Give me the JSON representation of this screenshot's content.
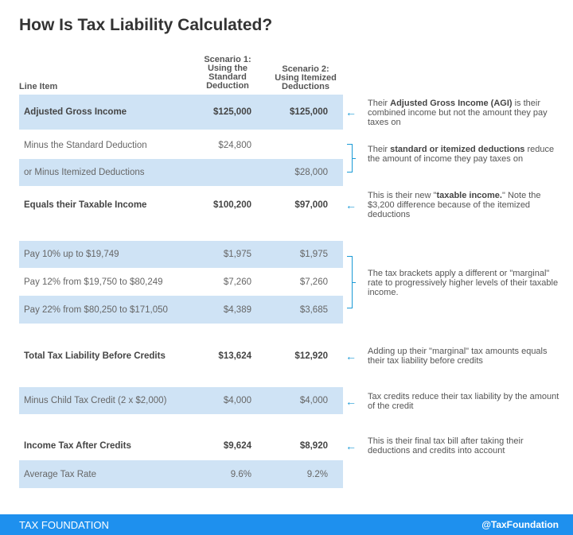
{
  "title": "How Is Tax Liability Calculated?",
  "headers": {
    "line_item": "Line Item",
    "scenario1": [
      "Scenario 1:",
      "Using the",
      "Standard",
      "Deduction"
    ],
    "scenario2": [
      "Scenario 2:",
      "Using Itemized",
      "Deductions"
    ]
  },
  "rows": [
    {
      "label": "Adjusted Gross Income",
      "s1": "$125,000",
      "s2": "$125,000"
    },
    {
      "label": "Minus the Standard Deduction",
      "s1": "$24,800",
      "s2": ""
    },
    {
      "label": "or Minus Itemized Deductions",
      "s1": "",
      "s2": "$28,000"
    },
    {
      "label": "Equals their Taxable Income",
      "s1": "$100,200",
      "s2": "$97,000"
    },
    {
      "label": "Pay 10% up to $19,749",
      "s1": "$1,975",
      "s2": "$1,975"
    },
    {
      "label": "Pay 12% from $19,750 to $80,249",
      "s1": "$7,260",
      "s2": "$7,260"
    },
    {
      "label": "Pay 22% from $80,250 to $171,050",
      "s1": "$4,389",
      "s2": "$3,685"
    },
    {
      "label": "Total Tax Liability Before Credits",
      "s1": "$13,624",
      "s2": "$12,920"
    },
    {
      "label": "Minus Child Tax Credit (2 x $2,000)",
      "s1": "$4,000",
      "s2": "$4,000"
    },
    {
      "label": "Income Tax After Credits",
      "s1": "$9,624",
      "s2": "$8,920"
    },
    {
      "label": "Average Tax Rate",
      "s1": "9.6%",
      "s2": "9.2%"
    }
  ],
  "notes": {
    "agi": {
      "pre": "Their ",
      "bold": "Adjusted Gross Income (AGI)",
      "post": " is their combined income but not the amount they pay taxes on"
    },
    "deductions": {
      "pre": "Their ",
      "bold": "standard or itemized deductions",
      "post": " reduce the amount of income they pay taxes on"
    },
    "taxable": {
      "pre": "This is their new \"",
      "bold": "taxable income.",
      "post": "\" Note the $3,200 difference because of the itemized deductions"
    },
    "brackets": "The tax brackets apply a different or \"marginal\" rate to progressively higher levels of their taxable income.",
    "total": "Adding up their \"marginal\" tax amounts equals their tax liability before credits",
    "credits": "Tax credits reduce their tax liability by the amount of the credit",
    "final": "This is their final tax bill after taking their deductions and credits into account"
  },
  "footer": {
    "brand": "TAX FOUNDATION",
    "handle": "@TaxFoundation"
  },
  "colors": {
    "row_highlight": "#cfe3f5",
    "accent": "#1a9ad6",
    "footer": "#1e90ee"
  },
  "icons": {
    "arrow": "arrow-left-icon",
    "bracket": "bracket-icon"
  }
}
